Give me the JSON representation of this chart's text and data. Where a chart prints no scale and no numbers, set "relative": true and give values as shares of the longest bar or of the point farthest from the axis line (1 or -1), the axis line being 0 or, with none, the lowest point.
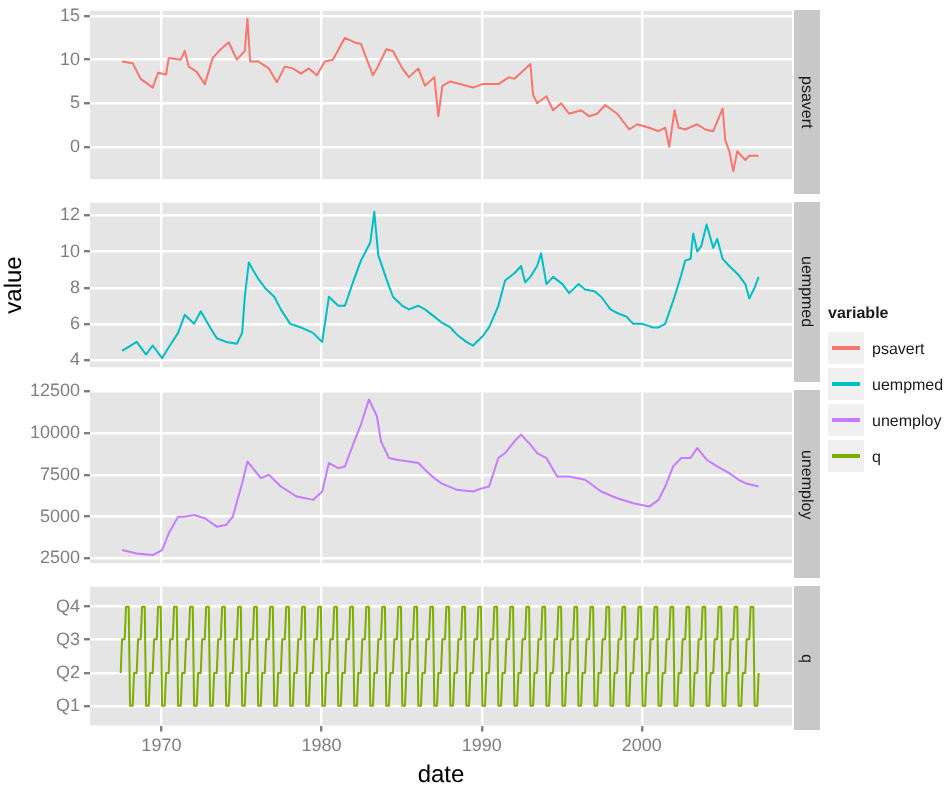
{
  "chart_data": [
    {
      "type": "line",
      "grid": true,
      "tick_labels": "y",
      "legend": "right",
      "legend_title": "variable",
      "xlim": [
        "1965-07",
        "2009-05"
      ],
      "xticks": [
        "1970",
        "1980",
        "1990",
        "2000"
      ],
      "ylim": [
        -3.7,
        15.6
      ],
      "yticks": [
        0,
        5,
        10,
        15
      ],
      "series": [
        {
          "name": "psavert",
          "color": "#f8766d",
          "x": [
            "1967-07",
            "1968-03",
            "1968-09",
            "1969-06",
            "1969-10",
            "1970-04",
            "1970-06",
            "1971-03",
            "1971-06",
            "1971-09",
            "1972-03",
            "1972-09",
            "1973-03",
            "1973-09",
            "1974-03",
            "1974-09",
            "1975-03",
            "1975-05",
            "1975-07",
            "1976-01",
            "1976-09",
            "1977-03",
            "1977-09",
            "1978-03",
            "1978-09",
            "1979-03",
            "1979-09",
            "1980-03",
            "1980-09",
            "1981-06",
            "1982-01",
            "1982-06",
            "1983-03",
            "1983-06",
            "1984-01",
            "1984-06",
            "1985-01",
            "1985-06",
            "1986-01",
            "1986-06",
            "1987-01",
            "1987-04",
            "1987-07",
            "1988-01",
            "1988-06",
            "1989-06",
            "1990-01",
            "1991-01",
            "1991-09",
            "1992-01",
            "1993-01",
            "1993-03",
            "1993-06",
            "1994-01",
            "1994-06",
            "1994-12",
            "1995-06",
            "1996-03",
            "1996-09",
            "1997-03",
            "1997-09",
            "1998-06",
            "1999-03",
            "1999-09",
            "2000-06",
            "2001-01",
            "2001-06",
            "2001-09",
            "2002-01",
            "2002-04",
            "2002-09",
            "2003-06",
            "2003-12",
            "2004-06",
            "2005-01",
            "2005-03",
            "2005-06",
            "2005-09",
            "2005-12",
            "2006-06",
            "2006-09",
            "2007-04"
          ],
          "values": [
            9.8,
            9.6,
            7.8,
            6.8,
            8.5,
            8.3,
            10.2,
            10.0,
            11.0,
            9.2,
            8.6,
            7.2,
            10.2,
            11.2,
            12.0,
            10.0,
            11.0,
            14.7,
            9.8,
            9.8,
            9.0,
            7.4,
            9.2,
            9.0,
            8.4,
            9.0,
            8.2,
            9.8,
            10.0,
            12.5,
            12.0,
            11.8,
            8.2,
            9.0,
            11.2,
            11.0,
            9.0,
            8.0,
            9.0,
            7.0,
            8.0,
            3.5,
            7.0,
            7.5,
            7.3,
            6.8,
            7.2,
            7.2,
            8.0,
            7.8,
            9.5,
            6.0,
            5.0,
            5.8,
            4.2,
            5.0,
            3.8,
            4.2,
            3.5,
            3.8,
            4.8,
            3.8,
            2.0,
            2.6,
            2.2,
            1.8,
            2.2,
            0.0,
            4.2,
            2.2,
            2.0,
            2.6,
            2.0,
            1.8,
            4.4,
            0.8,
            -0.5,
            -2.8,
            -0.5,
            -1.5,
            -1.0,
            -1.0
          ]
        }
      ]
    },
    {
      "type": "line",
      "grid": true,
      "tick_labels": "y",
      "legend": "right",
      "ylabel": "value",
      "xlim": [
        "1965-07",
        "2009-05"
      ],
      "xticks": [
        "1970",
        "1980",
        "1990",
        "2000"
      ],
      "ylim": [
        3.6,
        12.7
      ],
      "yticks": [
        4,
        6,
        8,
        10,
        12
      ],
      "series": [
        {
          "name": "uempmed",
          "color": "#00bfc4",
          "x": [
            "1967-07",
            "1968-06",
            "1969-01",
            "1969-06",
            "1970-01",
            "1970-06",
            "1971-01",
            "1971-06",
            "1972-01",
            "1972-06",
            "1973-01",
            "1973-06",
            "1974-01",
            "1974-09",
            "1975-01",
            "1975-03",
            "1975-06",
            "1975-09",
            "1976-01",
            "1976-06",
            "1977-01",
            "1977-06",
            "1978-01",
            "1978-09",
            "1979-06",
            "1980-01",
            "1980-06",
            "1981-01",
            "1981-06",
            "1982-01",
            "1982-06",
            "1983-01",
            "1983-04",
            "1983-07",
            "1984-01",
            "1984-06",
            "1985-01",
            "1985-06",
            "1986-01",
            "1986-06",
            "1987-01",
            "1987-06",
            "1988-01",
            "1988-06",
            "1989-01",
            "1989-06",
            "1990-01",
            "1990-06",
            "1991-01",
            "1991-06",
            "1992-01",
            "1992-06",
            "1992-09",
            "1993-01",
            "1993-06",
            "1993-09",
            "1994-01",
            "1994-06",
            "1995-01",
            "1995-06",
            "1996-01",
            "1996-06",
            "1997-01",
            "1997-06",
            "1998-01",
            "1998-06",
            "1999-01",
            "1999-06",
            "2000-01",
            "2000-09",
            "2001-01",
            "2001-06",
            "2002-01",
            "2002-06",
            "2002-09",
            "2003-01",
            "2003-03",
            "2003-06",
            "2003-09",
            "2004-01",
            "2004-06",
            "2004-09",
            "2005-01",
            "2005-06",
            "2006-01",
            "2006-06",
            "2006-09",
            "2007-01",
            "2007-04"
          ],
          "values": [
            4.5,
            5.0,
            4.3,
            4.8,
            4.1,
            4.7,
            5.5,
            6.5,
            6.0,
            6.7,
            5.8,
            5.2,
            5.0,
            4.9,
            5.5,
            7.5,
            9.4,
            9.0,
            8.5,
            8.0,
            7.5,
            6.8,
            6.0,
            5.8,
            5.5,
            5.0,
            7.5,
            7.0,
            7.0,
            8.5,
            9.5,
            10.5,
            12.2,
            9.8,
            8.5,
            7.5,
            7.0,
            6.8,
            7.0,
            6.8,
            6.4,
            6.1,
            5.8,
            5.4,
            5.0,
            4.8,
            5.3,
            5.8,
            7.0,
            8.4,
            8.8,
            9.2,
            8.3,
            8.6,
            9.2,
            9.9,
            8.2,
            8.6,
            8.2,
            7.7,
            8.2,
            7.9,
            7.8,
            7.5,
            6.8,
            6.6,
            6.4,
            6.0,
            6.0,
            5.8,
            5.8,
            6.0,
            7.5,
            8.7,
            9.5,
            9.6,
            11.0,
            10.0,
            10.3,
            11.5,
            10.2,
            10.7,
            9.6,
            9.2,
            8.7,
            8.2,
            7.4,
            8.0,
            8.6
          ]
        }
      ]
    },
    {
      "type": "line",
      "grid": true,
      "tick_labels": "y",
      "legend": "right",
      "xlim": [
        "1965-07",
        "2009-05"
      ],
      "xticks": [
        "1970",
        "1980",
        "1990",
        "2000"
      ],
      "ylim": [
        2217,
        12519
      ],
      "yticks": [
        2500,
        5000,
        7500,
        10000,
        12500
      ],
      "series": [
        {
          "name": "unemploy",
          "color": "#c77cff",
          "x": [
            "1967-07",
            "1968-06",
            "1969-06",
            "1970-01",
            "1970-06",
            "1971-01",
            "1971-06",
            "1972-01",
            "1972-09",
            "1973-06",
            "1974-01",
            "1974-06",
            "1975-01",
            "1975-05",
            "1975-09",
            "1976-03",
            "1976-09",
            "1977-06",
            "1978-06",
            "1979-06",
            "1980-01",
            "1980-06",
            "1981-01",
            "1981-06",
            "1982-01",
            "1982-06",
            "1982-12",
            "1983-06",
            "1983-09",
            "1984-03",
            "1984-09",
            "1985-06",
            "1986-01",
            "1986-06",
            "1987-01",
            "1987-06",
            "1988-06",
            "1989-06",
            "1990-01",
            "1990-06",
            "1991-01",
            "1991-06",
            "1992-01",
            "1992-06",
            "1993-01",
            "1993-06",
            "1994-01",
            "1994-09",
            "1995-06",
            "1996-06",
            "1997-06",
            "1998-06",
            "1999-06",
            "2000-06",
            "2001-01",
            "2001-06",
            "2001-12",
            "2002-06",
            "2003-01",
            "2003-06",
            "2004-01",
            "2004-09",
            "2005-06",
            "2006-01",
            "2006-06",
            "2007-04"
          ],
          "values": [
            3000,
            2800,
            2700,
            3000,
            4000,
            5000,
            5000,
            5100,
            4900,
            4400,
            4500,
            5000,
            7000,
            8300,
            7900,
            7300,
            7500,
            6800,
            6200,
            6000,
            6500,
            8200,
            7900,
            8000,
            9500,
            10500,
            12000,
            11000,
            9500,
            8500,
            8400,
            8300,
            8200,
            7800,
            7300,
            7000,
            6600,
            6500,
            6700,
            6800,
            8500,
            8800,
            9500,
            9900,
            9300,
            8800,
            8500,
            7400,
            7400,
            7200,
            6500,
            6100,
            5800,
            5600,
            6000,
            6800,
            8000,
            8500,
            8500,
            9100,
            8400,
            8000,
            7600,
            7200,
            7000,
            6800
          ]
        }
      ]
    },
    {
      "type": "line",
      "grid": true,
      "legend": "right",
      "xlabel": "date",
      "xlim": [
        "1965-07",
        "2009-05"
      ],
      "xticks": [
        "1970",
        "1980",
        "1990",
        "2000"
      ],
      "relative": true,
      "annotations": [
        "Q1",
        "Q2",
        "Q3",
        "Q4"
      ],
      "series": [
        {
          "name": "q",
          "color": "#7cae00",
          "x": [
            "1967-06",
            "1967-07",
            "1967-09",
            "1967-10",
            "1967-12",
            "1968-01",
            "1968-03",
            "1968-04",
            "1968-06",
            "1968-07",
            "1968-09",
            "1968-10",
            "1968-12",
            "1969-01",
            "1969-03",
            "1969-04",
            "1969-06",
            "1969-07",
            "1969-09",
            "1969-10",
            "1969-12",
            "1970-01",
            "1970-03",
            "1970-04",
            "1970-06",
            "1970-07",
            "1970-09",
            "1970-10",
            "1970-12",
            "1971-01",
            "1971-03",
            "1971-04",
            "1971-06",
            "1971-07",
            "1971-09",
            "1971-10",
            "1971-12",
            "1972-01",
            "1972-03",
            "1972-04",
            "1972-06",
            "1972-07",
            "1972-09",
            "1972-10",
            "1972-12",
            "1973-01",
            "1973-03",
            "1973-04",
            "1973-06",
            "1973-07",
            "1973-09",
            "1973-10",
            "1973-12",
            "1974-01",
            "1974-03",
            "1974-04",
            "1974-06",
            "1974-07",
            "1974-09",
            "1974-10",
            "1974-12",
            "1975-01",
            "1975-03",
            "1975-04",
            "1975-06",
            "1975-07",
            "1975-09",
            "1975-10",
            "1975-12",
            "1976-01",
            "1976-03",
            "1976-04",
            "1976-06",
            "1976-07",
            "1976-09",
            "1976-10",
            "1976-12",
            "1977-01",
            "1977-03",
            "1977-04",
            "1977-06",
            "1977-07",
            "1977-09",
            "1977-10",
            "1977-12",
            "1978-01",
            "1978-03",
            "1978-04",
            "1978-06",
            "1978-07",
            "1978-09",
            "1978-10",
            "1978-12",
            "1979-01",
            "1979-03",
            "1979-04",
            "1979-06",
            "1979-07",
            "1979-09",
            "1979-10",
            "1979-12",
            "1980-01",
            "1980-03",
            "1980-04",
            "1980-06",
            "1980-07",
            "1980-09",
            "1980-10",
            "1980-12",
            "1981-01",
            "1981-03",
            "1981-04",
            "1981-06",
            "1981-07",
            "1981-09",
            "1981-10",
            "1981-12",
            "1982-01",
            "1982-03",
            "1982-04",
            "1982-06",
            "1982-07",
            "1982-09",
            "1982-10",
            "1982-12",
            "1983-01",
            "1983-03",
            "1983-04",
            "1983-06",
            "1983-07",
            "1983-09",
            "1983-10",
            "1983-12",
            "1984-01",
            "1984-03",
            "1984-04",
            "1984-06",
            "1984-07",
            "1984-09",
            "1984-10",
            "1984-12",
            "1985-01",
            "1985-03",
            "1985-04",
            "1985-06",
            "1985-07",
            "1985-09",
            "1985-10",
            "1985-12",
            "1986-01",
            "1986-03",
            "1986-04",
            "1986-06",
            "1986-07",
            "1986-09",
            "1986-10",
            "1986-12",
            "1987-01",
            "1987-03",
            "1987-04",
            "1987-06",
            "1987-07",
            "1987-09",
            "1987-10",
            "1987-12",
            "1988-01",
            "1988-03",
            "1988-04",
            "1988-06",
            "1988-07",
            "1988-09",
            "1988-10",
            "1988-12",
            "1989-01",
            "1989-03",
            "1989-04",
            "1989-06",
            "1989-07",
            "1989-09",
            "1989-10",
            "1989-12",
            "1990-01",
            "1990-03",
            "1990-04",
            "1990-06",
            "1990-07",
            "1990-09",
            "1990-10",
            "1990-12",
            "1991-01",
            "1991-03",
            "1991-04",
            "1991-06",
            "1991-07",
            "1991-09",
            "1991-10",
            "1991-12",
            "1992-01",
            "1992-03",
            "1992-04",
            "1992-06",
            "1992-07",
            "1992-09",
            "1992-10",
            "1992-12",
            "1993-01",
            "1993-03",
            "1993-04",
            "1993-06",
            "1993-07",
            "1993-09",
            "1993-10",
            "1993-12",
            "1994-01",
            "1994-03",
            "1994-04",
            "1994-06",
            "1994-07",
            "1994-09",
            "1994-10",
            "1994-12",
            "1995-01",
            "1995-03",
            "1995-04",
            "1995-06",
            "1995-07",
            "1995-09",
            "1995-10",
            "1995-12",
            "1996-01",
            "1996-03",
            "1996-04",
            "1996-06",
            "1996-07",
            "1996-09",
            "1996-10",
            "1996-12",
            "1997-01",
            "1997-03",
            "1997-04",
            "1997-06",
            "1997-07",
            "1997-09",
            "1997-10",
            "1997-12",
            "1998-01",
            "1998-03",
            "1998-04",
            "1998-06",
            "1998-07",
            "1998-09",
            "1998-10",
            "1998-12",
            "1999-01",
            "1999-03",
            "1999-04",
            "1999-06",
            "1999-07",
            "1999-09",
            "1999-10",
            "1999-12",
            "2000-01",
            "2000-03",
            "2000-04",
            "2000-06",
            "2000-07",
            "2000-09",
            "2000-10",
            "2000-12",
            "2001-01",
            "2001-03",
            "2001-04",
            "2001-06",
            "2001-07",
            "2001-09",
            "2001-10",
            "2001-12",
            "2002-01",
            "2002-03",
            "2002-04",
            "2002-06",
            "2002-07",
            "2002-09",
            "2002-10",
            "2002-12",
            "2003-01",
            "2003-03",
            "2003-04",
            "2003-06",
            "2003-07",
            "2003-09",
            "2003-10",
            "2003-12",
            "2004-01",
            "2004-03",
            "2004-04",
            "2004-06",
            "2004-07",
            "2004-09",
            "2004-10",
            "2004-12",
            "2005-01",
            "2005-03",
            "2005-04",
            "2005-06",
            "2005-07",
            "2005-09",
            "2005-10",
            "2005-12",
            "2006-01",
            "2006-03",
            "2006-04",
            "2006-06",
            "2006-07",
            "2006-09",
            "2006-10",
            "2006-12",
            "2007-01",
            "2007-03",
            "2007-04"
          ],
          "values": [
            0.33,
            0.67,
            0.67,
            1,
            1,
            0,
            0,
            0.33,
            0.33,
            0.67,
            0.67,
            1,
            1,
            0,
            0,
            0.33,
            0.33,
            0.67,
            0.67,
            1,
            1,
            0,
            0,
            0.33,
            0.33,
            0.67,
            0.67,
            1,
            1,
            0,
            0,
            0.33,
            0.33,
            0.67,
            0.67,
            1,
            1,
            0,
            0,
            0.33,
            0.33,
            0.67,
            0.67,
            1,
            1,
            0,
            0,
            0.33,
            0.33,
            0.67,
            0.67,
            1,
            1,
            0,
            0,
            0.33,
            0.33,
            0.67,
            0.67,
            1,
            1,
            0,
            0,
            0.33,
            0.33,
            0.67,
            0.67,
            1,
            1,
            0,
            0,
            0.33,
            0.33,
            0.67,
            0.67,
            1,
            1,
            0,
            0,
            0.33,
            0.33,
            0.67,
            0.67,
            1,
            1,
            0,
            0,
            0.33,
            0.33,
            0.67,
            0.67,
            1,
            1,
            0,
            0,
            0.33,
            0.33,
            0.67,
            0.67,
            1,
            1,
            0,
            0,
            0.33,
            0.33,
            0.67,
            0.67,
            1,
            1,
            0,
            0,
            0.33,
            0.33,
            0.67,
            0.67,
            1,
            1,
            0,
            0,
            0.33,
            0.33,
            0.67,
            0.67,
            1,
            1,
            0,
            0,
            0.33,
            0.33,
            0.67,
            0.67,
            1,
            1,
            0,
            0,
            0.33,
            0.33,
            0.67,
            0.67,
            1,
            1,
            0,
            0,
            0.33,
            0.33,
            0.67,
            0.67,
            1,
            1,
            0,
            0,
            0.33,
            0.33,
            0.67,
            0.67,
            1,
            1,
            0,
            0,
            0.33,
            0.33,
            0.67,
            0.67,
            1,
            1,
            0,
            0,
            0.33,
            0.33,
            0.67,
            0.67,
            1,
            1,
            0,
            0,
            0.33,
            0.33,
            0.67,
            0.67,
            1,
            1,
            0,
            0,
            0.33,
            0.33,
            0.67,
            0.67,
            1,
            1,
            0,
            0,
            0.33,
            0.33,
            0.67,
            0.67,
            1,
            1,
            0,
            0,
            0.33,
            0.33,
            0.67,
            0.67,
            1,
            1,
            0,
            0,
            0.33,
            0.33,
            0.67,
            0.67,
            1,
            1,
            0,
            0,
            0.33,
            0.33,
            0.67,
            0.67,
            1,
            1,
            0,
            0,
            0.33,
            0.33,
            0.67,
            0.67,
            1,
            1,
            0,
            0,
            0.33,
            0.33,
            0.67,
            0.67,
            1,
            1,
            0,
            0,
            0.33,
            0.33,
            0.67,
            0.67,
            1,
            1,
            0,
            0,
            0.33,
            0.33,
            0.67,
            0.67,
            1,
            1,
            0,
            0,
            0.33,
            0.33,
            0.67,
            0.67,
            1,
            1,
            0,
            0,
            0.33,
            0.33,
            0.67,
            0.67,
            1,
            1,
            0,
            0,
            0.33,
            0.33,
            0.67,
            0.67,
            1,
            1,
            0,
            0,
            0.33,
            0.33,
            0.67,
            0.67,
            1,
            1,
            0,
            0,
            0.33,
            0.33,
            0.67,
            0.67,
            1,
            1,
            0,
            0,
            0.33,
            0.33,
            0.67,
            0.67,
            1,
            1,
            0,
            0,
            0.33,
            0.33,
            0.67,
            0.67,
            1,
            1,
            0,
            0,
            0.33,
            0.33,
            0.67,
            0.67,
            1,
            1,
            0,
            0,
            0.33
          ]
        }
      ]
    }
  ]
}
